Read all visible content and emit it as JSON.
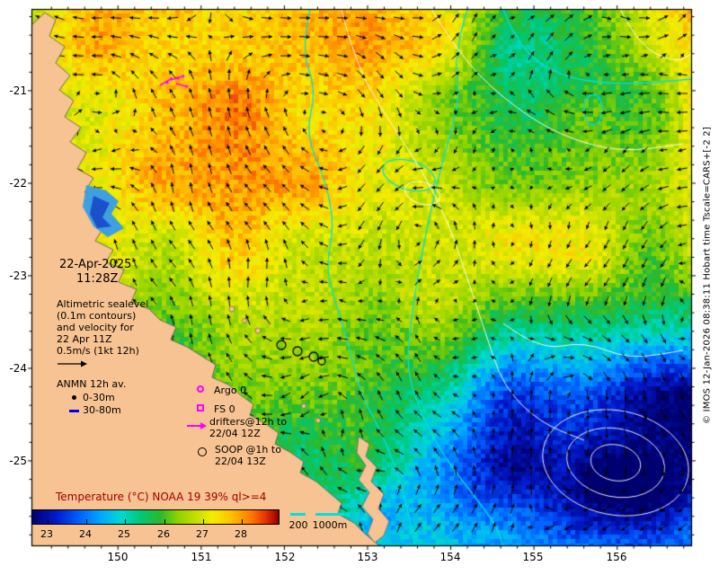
{
  "figure": {
    "timestamp": {
      "date": "22-Apr-2025",
      "time": "11:28Z"
    },
    "altimetric_note": {
      "line1": "Altimetric sealevel",
      "line2": "(0.1m contours)",
      "line3": "and velocity for",
      "line4": "22 Apr 11Z",
      "line5": "0.5m/s (1kt 12h)"
    },
    "anmn_legend": {
      "title": "ANMN 12h av.",
      "depth1": "0-30m",
      "depth2": "30-80m"
    },
    "obs_legend": {
      "argo": "Argo 0",
      "fs": "FS 0",
      "drifters_line1": "drifters@12h to",
      "drifters_line2": "22/04 12Z",
      "soop_line1": "SOOP @1h to",
      "soop_line2": "22/04 13Z"
    },
    "colorbar": {
      "title": "Temperature (°C) NOAA 19 39% ql>=4",
      "min": 22.6,
      "max": 29.0,
      "tick_values": [
        23,
        24,
        25,
        26,
        27,
        28
      ],
      "tick_labels": [
        "23",
        "24",
        "25",
        "26",
        "27",
        "28"
      ]
    },
    "bathymetry_legend": {
      "label_200": "200",
      "label_1000": "1000m"
    },
    "axes": {
      "lat_labels": [
        "-21",
        "-22",
        "-23",
        "-24",
        "-25"
      ],
      "lon_labels": [
        "150",
        "151",
        "152",
        "153",
        "154",
        "155",
        "156"
      ]
    },
    "credit": "© IMOS 12-Jan-2026 08:38:11 Hobart time Tscale=CARS+[-2 2]",
    "colors": {
      "land": "#f7c392",
      "marker_magenta": "#ff00ff",
      "anmn_blue": "#0000ee",
      "bathy_cyan": "#00e0e0",
      "contour_white": "#ffffff",
      "title_red": "#a00000"
    },
    "colormap": [
      {
        "p": 0.0,
        "c": "#000070"
      },
      {
        "p": 0.094,
        "c": "#0018c8"
      },
      {
        "p": 0.19,
        "c": "#0060ff"
      },
      {
        "p": 0.28,
        "c": "#00aaff"
      },
      {
        "p": 0.36,
        "c": "#00d8d0"
      },
      {
        "p": 0.44,
        "c": "#00c878"
      },
      {
        "p": 0.52,
        "c": "#2cb82c"
      },
      {
        "p": 0.59,
        "c": "#8cd200"
      },
      {
        "p": 0.67,
        "c": "#c8e000"
      },
      {
        "p": 0.73,
        "c": "#f2ee00"
      },
      {
        "p": 0.81,
        "c": "#ffbe00"
      },
      {
        "p": 0.89,
        "c": "#ff7800"
      },
      {
        "p": 0.95,
        "c": "#e03000"
      },
      {
        "p": 1.0,
        "c": "#900000"
      }
    ]
  },
  "chart_data": {
    "type": "heatmap",
    "title": "Temperature (°C) NOAA 19 39% ql>=4",
    "x_ticks": [
      "150",
      "151",
      "152",
      "153",
      "154",
      "155",
      "156"
    ],
    "y_ticks": [
      "-21",
      "-22",
      "-23",
      "-24",
      "-25"
    ],
    "colorbar_ticks": [
      23,
      24,
      25,
      26,
      27,
      28
    ],
    "analysis_time": "22-Apr-2025 11:28Z",
    "overlays": [
      "altimetric sealevel (0.1m contours) and velocity for 22 Apr 11Z, scale 0.5m/s (1kt 12h)",
      "bathymetry contours 200m and 1000m (cyan)",
      "ANMN 12h av.: 0-30m, 30-80m",
      "Argo 0",
      "FS 0",
      "drifters@12h to 22/04 12Z",
      "SOOP @1h to 22/04 13Z"
    ]
  }
}
